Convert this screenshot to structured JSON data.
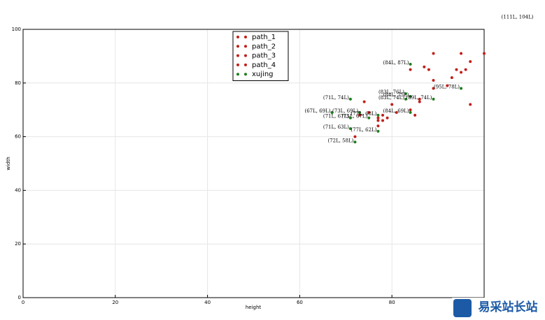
{
  "chart_data": {
    "type": "scatter",
    "x_label": "height",
    "y_label": "width",
    "xlim": [
      0,
      100
    ],
    "ylim": [
      0,
      100
    ],
    "xticks": [
      0,
      20,
      40,
      60,
      80,
      100
    ],
    "yticks": [
      0,
      20,
      40,
      60,
      80,
      100
    ],
    "grid": true,
    "legend": "upper center",
    "series": [
      {
        "name": "path_1",
        "color": "#c0201a",
        "x": [
          100,
          89,
          95,
          87,
          88,
          84,
          97,
          96
        ],
        "values": [
          91,
          91,
          91,
          86,
          85,
          85,
          88,
          85
        ]
      },
      {
        "name": "path_2",
        "color": "#c0201a",
        "x": [
          94,
          95,
          93,
          89,
          89,
          92,
          97,
          74
        ],
        "values": [
          85,
          84,
          82,
          81,
          78,
          79,
          72,
          73
        ]
      },
      {
        "name": "path_3",
        "color": "#c0201a",
        "x": [
          86,
          80,
          85,
          84,
          75,
          78,
          77,
          79
        ],
        "values": [
          73,
          72,
          68,
          70,
          69,
          68,
          67,
          67
        ]
      },
      {
        "name": "path_4",
        "color": "#c0201a",
        "x": [
          78,
          77,
          77,
          72,
          73,
          81,
          86
        ],
        "values": [
          66,
          66,
          64,
          60,
          68,
          69,
          74
        ]
      },
      {
        "name": "xujing",
        "color": "#1e7d1e",
        "x": [
          84,
          83,
          95,
          84,
          83,
          89,
          71,
          67,
          73,
          84,
          75,
          77,
          71,
          71,
          77,
          72
        ],
        "values": [
          87,
          76,
          78,
          75,
          74,
          74,
          74,
          69,
          69,
          69,
          67,
          68,
          67,
          63,
          62,
          58
        ],
        "value_labels": [
          "(84L, 87L)",
          "(83L, 76L)",
          "(95L, 78L)",
          "(84L, 75L)",
          "(83L, 74L)",
          "(89L, 74L)",
          "(71L, 74L)",
          "(67L, 69L)",
          "(73L, 69L)",
          "(84L, 69L)",
          "(75L, 67L)",
          "(77L, 68L)",
          "(71L, 67L)",
          "(71L, 63L)",
          "(77L, 62L)",
          "(72L, 58L)"
        ]
      }
    ],
    "annotations": [
      {
        "text": "(111L, 104L)",
        "x": 111,
        "y": 104
      }
    ]
  },
  "watermark": "易采站长站"
}
